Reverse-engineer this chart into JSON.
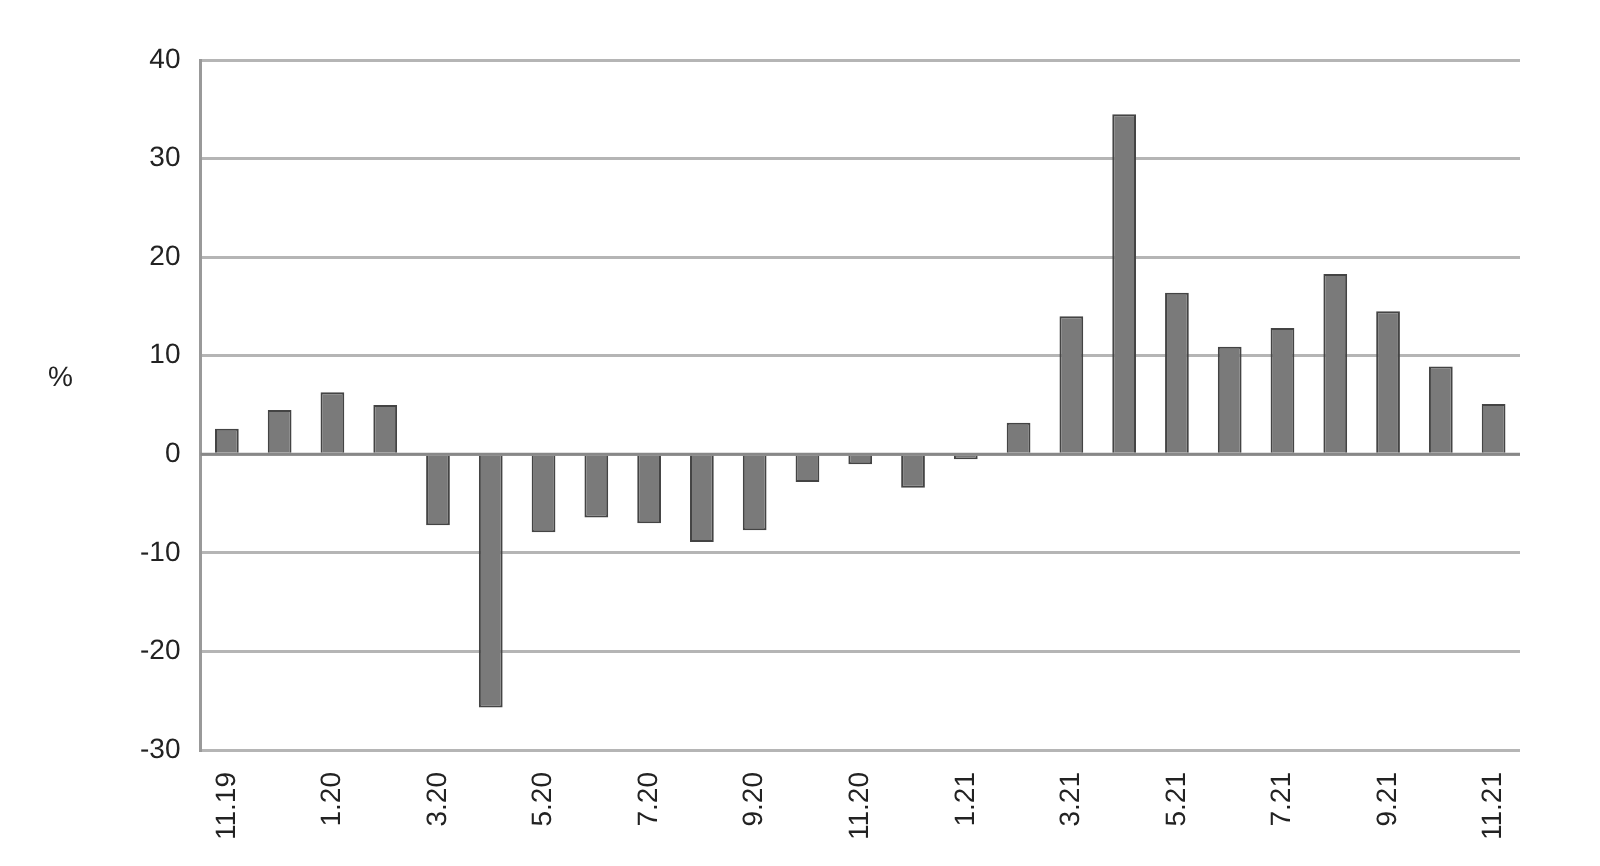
{
  "chart_data": {
    "type": "bar",
    "ylabel": "%",
    "categories": [
      "11.19",
      null,
      "1.20",
      null,
      "3.20",
      null,
      "5.20",
      null,
      "7.20",
      null,
      "9.20",
      null,
      "11.20",
      null,
      "1.21",
      null,
      "3.21",
      null,
      "5.21",
      null,
      "7.21",
      null,
      "9.21",
      null,
      "11.21"
    ],
    "values": [
      2.6,
      4.5,
      6.3,
      5.0,
      -7.2,
      -25.7,
      -7.9,
      -6.4,
      -7.0,
      -8.9,
      -7.7,
      -2.8,
      -1.0,
      -3.4,
      -0.5,
      3.2,
      14.0,
      34.5,
      16.4,
      10.9,
      12.8,
      18.3,
      14.5,
      8.9,
      5.1
    ],
    "color": "#7a7a7a",
    "ylim": [
      -30,
      40
    ],
    "yticks": [
      -30,
      -20,
      -10,
      0,
      10,
      20,
      30,
      40
    ],
    "grid": "y"
  }
}
